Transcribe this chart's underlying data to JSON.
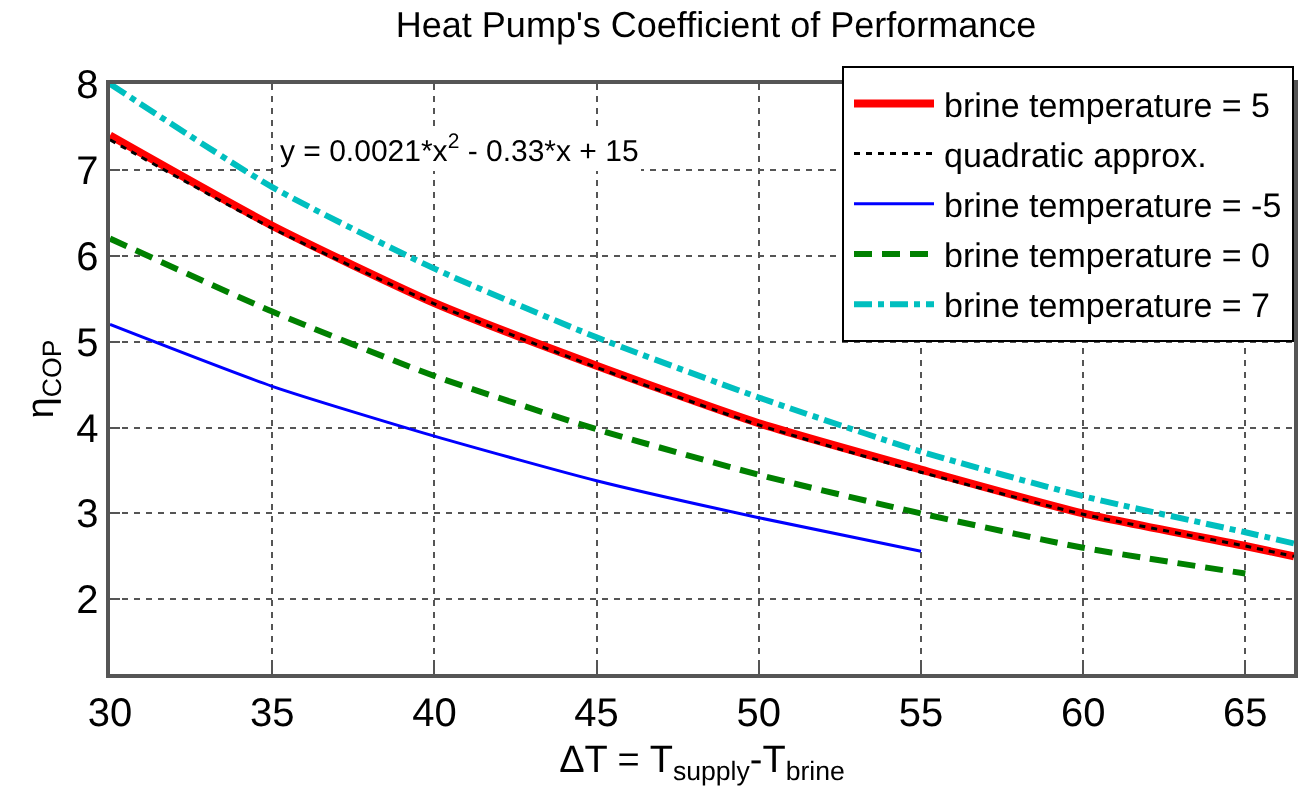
{
  "chart_data": {
    "type": "line",
    "title": "Heat Pump's Coefficient of Performance",
    "xlabel": "ΔT = T$_{supply}$-T$_{brine}$",
    "ylabel": "η$_{COP}$",
    "annotations": [
      "y = 0.0021*x$^{2}$ - 0.33*x + 15"
    ],
    "x": [
      30,
      35,
      40,
      45,
      50,
      55,
      60,
      65,
      66.5
    ],
    "series": [
      {
        "name": "brine temperature = 5",
        "color": "#ff0000",
        "line_style": "solid",
        "values": [
          7.4,
          6.35,
          5.45,
          4.72,
          4.05,
          3.51,
          3.0,
          2.62,
          2.5
        ]
      },
      {
        "name": "quadratic approx.",
        "color": "#000000",
        "line_style": "dotted",
        "values": [
          7.35,
          6.32,
          5.44,
          4.7,
          4.03,
          3.48,
          2.99,
          2.62,
          2.5
        ]
      },
      {
        "name": "brine temperature = -5",
        "color": "#0000ff",
        "line_style": "solid",
        "x": [
          30,
          35,
          40,
          45,
          50,
          55
        ],
        "values": [
          5.2,
          4.48,
          3.9,
          3.38,
          2.95,
          2.56
        ]
      },
      {
        "name": "brine temperature = 0",
        "color": "#008000",
        "line_style": "dashed",
        "x": [
          30,
          35,
          40,
          45,
          50,
          55,
          60,
          65
        ],
        "values": [
          6.2,
          5.35,
          4.6,
          3.98,
          3.45,
          3.0,
          2.6,
          2.3
        ]
      },
      {
        "name": "brine temperature = 7",
        "color": "#00bfbf",
        "line_style": "dashdot",
        "values": [
          8.0,
          6.8,
          5.85,
          5.05,
          4.35,
          3.72,
          3.2,
          2.78,
          2.65
        ]
      }
    ],
    "xlim": [
      30,
      66.5
    ],
    "xticks": [
      30,
      35,
      40,
      45,
      50,
      55,
      60,
      65
    ],
    "ylim": [
      1.13,
      8
    ],
    "yticks": [
      2,
      3,
      4,
      5,
      6,
      7,
      8
    ],
    "grid": true,
    "legend": "top right",
    "marker": "none"
  }
}
